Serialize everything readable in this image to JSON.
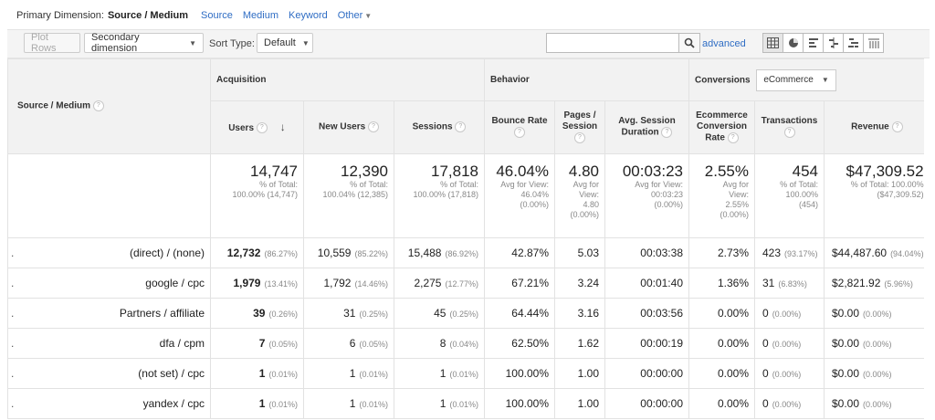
{
  "primary_dimension": {
    "label": "Primary Dimension:",
    "selected": "Source / Medium",
    "links": [
      "Source",
      "Medium",
      "Keyword"
    ],
    "other": "Other"
  },
  "toolbar": {
    "plot_rows": "Plot Rows",
    "secondary_dimension": "Secondary dimension",
    "sort_type_label": "Sort Type:",
    "sort_type_value": "Default",
    "search_value": "",
    "advanced": "advanced"
  },
  "header": {
    "dimension": "Source / Medium",
    "acquisition": "Acquisition",
    "behavior": "Behavior",
    "conversions": "Conversions",
    "conversions_select": "eCommerce",
    "users": "Users",
    "new_users": "New Users",
    "sessions": "Sessions",
    "bounce_rate": "Bounce Rate",
    "pages_session_1": "Pages /",
    "pages_session_2": "Session",
    "avg_duration_1": "Avg. Session",
    "avg_duration_2": "Duration",
    "ecommerce_1": "Ecommerce",
    "ecommerce_2": "Conversion",
    "ecommerce_3": "Rate",
    "transactions": "Transactions",
    "revenue": "Revenue"
  },
  "totals": {
    "users": {
      "value": "14,747",
      "sub1": "% of Total:",
      "sub2": "100.00% (14,747)"
    },
    "new_users": {
      "value": "12,390",
      "sub1": "% of Total:",
      "sub2": "100.04% (12,385)"
    },
    "sessions": {
      "value": "17,818",
      "sub1": "% of Total:",
      "sub2": "100.00% (17,818)"
    },
    "bounce_rate": {
      "value": "46.04%",
      "sub1": "Avg for View:",
      "sub2": "46.04%",
      "sub3": "(0.00%)"
    },
    "pages_session": {
      "value": "4.80",
      "sub1": "Avg for",
      "sub2": "View:",
      "sub3": "4.80",
      "sub4": "(0.00%)"
    },
    "avg_duration": {
      "value": "00:03:23",
      "sub1": "Avg for View:",
      "sub2": "00:03:23",
      "sub3": "(0.00%)"
    },
    "conv_rate": {
      "value": "2.55%",
      "sub1": "Avg for",
      "sub2": "View:",
      "sub3": "2.55%",
      "sub4": "(0.00%)"
    },
    "transactions": {
      "value": "454",
      "sub1": "% of Total:",
      "sub2": "100.00%",
      "sub3": "(454)"
    },
    "revenue": {
      "value": "$47,309.52",
      "sub1": "% of Total: 100.00%",
      "sub2": "($47,309.52)"
    }
  },
  "rows": [
    {
      "dim": "(direct) / (none)",
      "users": "12,732",
      "users_pct": "(86.27%)",
      "new_users": "10,559",
      "new_users_pct": "(85.22%)",
      "sessions": "15,488",
      "sessions_pct": "(86.92%)",
      "bounce": "42.87%",
      "pages": "5.03",
      "duration": "00:03:38",
      "conv": "2.73%",
      "trans": "423",
      "trans_pct": "(93.17%)",
      "revenue": "$44,487.60",
      "revenue_pct": "(94.04%)"
    },
    {
      "dim": "google / cpc",
      "users": "1,979",
      "users_pct": "(13.41%)",
      "new_users": "1,792",
      "new_users_pct": "(14.46%)",
      "sessions": "2,275",
      "sessions_pct": "(12.77%)",
      "bounce": "67.21%",
      "pages": "3.24",
      "duration": "00:01:40",
      "conv": "1.36%",
      "trans": "31",
      "trans_pct": "(6.83%)",
      "revenue": "$2,821.92",
      "revenue_pct": "(5.96%)"
    },
    {
      "dim": "Partners / affiliate",
      "users": "39",
      "users_pct": "(0.26%)",
      "new_users": "31",
      "new_users_pct": "(0.25%)",
      "sessions": "45",
      "sessions_pct": "(0.25%)",
      "bounce": "64.44%",
      "pages": "3.16",
      "duration": "00:03:56",
      "conv": "0.00%",
      "trans": "0",
      "trans_pct": "(0.00%)",
      "revenue": "$0.00",
      "revenue_pct": "(0.00%)"
    },
    {
      "dim": "dfa / cpm",
      "users": "7",
      "users_pct": "(0.05%)",
      "new_users": "6",
      "new_users_pct": "(0.05%)",
      "sessions": "8",
      "sessions_pct": "(0.04%)",
      "bounce": "62.50%",
      "pages": "1.62",
      "duration": "00:00:19",
      "conv": "0.00%",
      "trans": "0",
      "trans_pct": "(0.00%)",
      "revenue": "$0.00",
      "revenue_pct": "(0.00%)"
    },
    {
      "dim": "(not set) / cpc",
      "users": "1",
      "users_pct": "(0.01%)",
      "new_users": "1",
      "new_users_pct": "(0.01%)",
      "sessions": "1",
      "sessions_pct": "(0.01%)",
      "bounce": "100.00%",
      "pages": "1.00",
      "duration": "00:00:00",
      "conv": "0.00%",
      "trans": "0",
      "trans_pct": "(0.00%)",
      "revenue": "$0.00",
      "revenue_pct": "(0.00%)"
    },
    {
      "dim": "yandex / cpc",
      "users": "1",
      "users_pct": "(0.01%)",
      "new_users": "1",
      "new_users_pct": "(0.01%)",
      "sessions": "1",
      "sessions_pct": "(0.01%)",
      "bounce": "100.00%",
      "pages": "1.00",
      "duration": "00:00:00",
      "conv": "0.00%",
      "trans": "0",
      "trans_pct": "(0.00%)",
      "revenue": "$0.00",
      "revenue_pct": "(0.00%)"
    }
  ]
}
